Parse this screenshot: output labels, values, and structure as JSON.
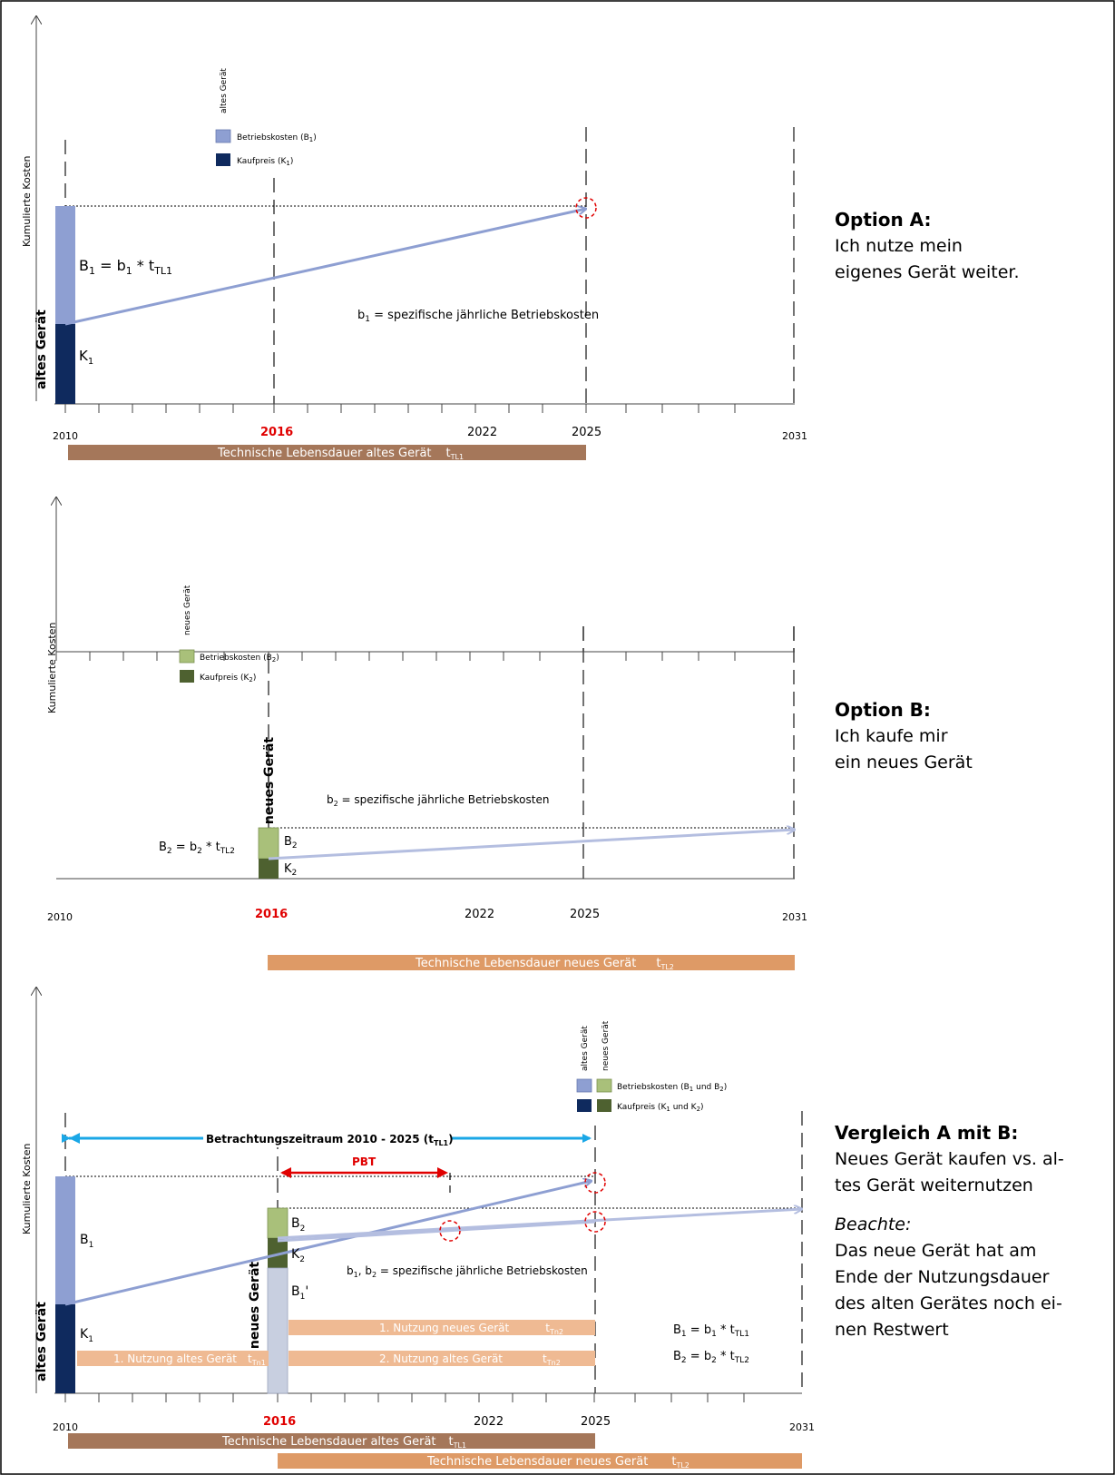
{
  "colors": {
    "b1": "#8e9fd2",
    "k1": "#0f2a5e",
    "b2": "#a9c07a",
    "k2": "#4e6130",
    "b1prime": "#c8cfe0",
    "bar_alt": "#a5775a",
    "bar_neu": "#de9a66",
    "bar_light": "#efba93",
    "trend": "#8e9fd2",
    "trend_light": "#b4bee0",
    "cyan": "#1aa7e6",
    "red": "#e00000"
  },
  "common": {
    "y_axis_label": "Kumulierte Kosten",
    "years": [
      "2010",
      "2016",
      "2022",
      "2025",
      "2031"
    ],
    "legend_b": "Betriebskosten",
    "legend_k": "Kaufpreis"
  },
  "panel_a": {
    "legend_header": "altes Gerät",
    "legend_b_sub": "1",
    "legend_k_sub": "1",
    "bar_label": "altes Gerät",
    "formula_main": "B",
    "formula_sub": "1",
    "formula_eq": " = b",
    "formula_sub2": "1",
    "formula_times": " * t",
    "formula_sub3": "TL1",
    "k_label": "K",
    "k_sub": "1",
    "note": "b",
    "note_sub": "1",
    "note_rest": " = spezifische jährliche Betriebskosten",
    "life_bar": "Technische Lebensdauer altes Gerät",
    "life_t": "t",
    "life_sub": "TL1",
    "title": "Option A:",
    "line1": "Ich nutze mein",
    "line2": "eigenes Gerät weiter."
  },
  "panel_b": {
    "legend_header": "neues Gerät",
    "legend_b_sub": "2",
    "legend_k_sub": "2",
    "bar_label": "neues Gerät",
    "formula_left": "B",
    "formula_left_sub": "2",
    "formula_left_eq": " = b",
    "formula_left_sub2": "2",
    "formula_left_times": " * t",
    "formula_left_sub3": "TL2",
    "b_label": "B",
    "b_sub": "2",
    "k_label": "K",
    "k_sub": "2",
    "note": "b",
    "note_sub": "2",
    "note_rest": " = spezifische jährliche Betriebskosten",
    "life_bar": "Technische Lebensdauer neues Gerät",
    "life_t": "t",
    "life_sub": "TL2",
    "title": "Option B:",
    "line1": "Ich kaufe mir",
    "line2": "ein neues Gerät"
  },
  "panel_c": {
    "legend_header_old": "altes Gerät",
    "legend_header_new": "neues Gerät",
    "legend_b_text": "Betriebskosten (B",
    "legend_b_s1": "1",
    "legend_b_mid": " und B",
    "legend_b_s2": "2",
    "legend_b_end": ")",
    "legend_k_text": "Kaufpreis (K",
    "legend_k_s1": "1",
    "legend_k_mid": " und K",
    "legend_k_s2": "2",
    "legend_k_end": ")",
    "period_label": "Betrachtungszeitraum 2010 - 2025 (t",
    "period_sub": "TL1",
    "period_end": ")",
    "pbt": "PBT",
    "bar_old": "altes Gerät",
    "bar_new": "neues Gerät",
    "b1": "B",
    "b1_sub": "1",
    "k1": "K",
    "k1_sub": "1",
    "b2": "B",
    "b2_sub": "2",
    "k2": "K",
    "k2_sub": "2",
    "b1p": "B",
    "b1p_sub": "1",
    "b1p_tick": "'",
    "note": "b",
    "note_s1": "1",
    "note_mid": ", b",
    "note_s2": "2",
    "note_rest": " = spezifische jährliche Betriebskosten",
    "use1_new": "1. Nutzung neues Gerät",
    "use1_new_t": "t",
    "use1_new_sub": "Tn2",
    "use1_old": "1. Nutzung altes Gerät",
    "use1_old_t": "t",
    "use1_old_sub": "Tn1",
    "use2_old": "2. Nutzung altes Gerät",
    "use2_old_t": "t",
    "use2_old_sub": "Tn2",
    "f1": "B",
    "f1_s": "1",
    "f1_eq": " = b",
    "f1_s2": "1",
    "f1_t": " * t",
    "f1_s3": "TL1",
    "f2": "B",
    "f2_s": "2",
    "f2_eq": " = b",
    "f2_s2": "2",
    "f2_t": " * t",
    "f2_s3": "TL2",
    "life_old": "Technische Lebensdauer altes Gerät",
    "life_old_t": "t",
    "life_old_sub": "TL1",
    "life_new": "Technische Lebensdauer neues Gerät",
    "life_new_t": "t",
    "life_new_sub": "TL2",
    "title": "Vergleich A mit B:",
    "line1": "Neues Gerät kaufen vs. al-",
    "line2": "tes Gerät weiternutzen",
    "line3": "Beachte:",
    "line4": "Das neue Gerät hat am",
    "line5": "Ende der Nutzungsdauer",
    "line6": "des alten Gerätes noch ei-",
    "line7": "nen Restwert"
  }
}
